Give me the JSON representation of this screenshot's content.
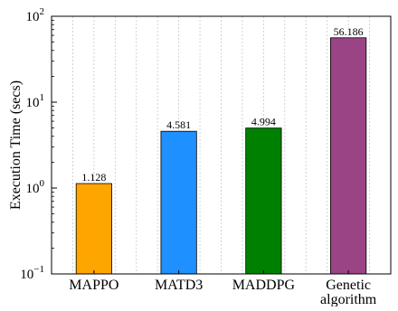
{
  "chart_data": {
    "type": "bar",
    "yscale": "log",
    "ylabel": "Execution Time (secs)",
    "xlabel": "",
    "title": "",
    "ylim": [
      0.1,
      100
    ],
    "grid": "vertical dotted",
    "categories": [
      {
        "lines": [
          "MAPPO"
        ]
      },
      {
        "lines": [
          "MATD3"
        ]
      },
      {
        "lines": [
          "MADDPG"
        ]
      },
      {
        "lines": [
          "Genetic",
          "algorithm"
        ]
      }
    ],
    "values": [
      1.128,
      4.581,
      4.994,
      56.186
    ],
    "value_labels": [
      "1.128",
      "4.581",
      "4.994",
      "56.186"
    ],
    "colors": [
      "#ffa500",
      "#1e90ff",
      "#008000",
      "#9a4486"
    ],
    "yticks": [
      {
        "base": "10",
        "exp": "−1",
        "value": 0.1
      },
      {
        "base": "10",
        "exp": "0",
        "value": 1
      },
      {
        "base": "10",
        "exp": "1",
        "value": 10
      },
      {
        "base": "10",
        "exp": "2",
        "value": 100
      }
    ]
  }
}
